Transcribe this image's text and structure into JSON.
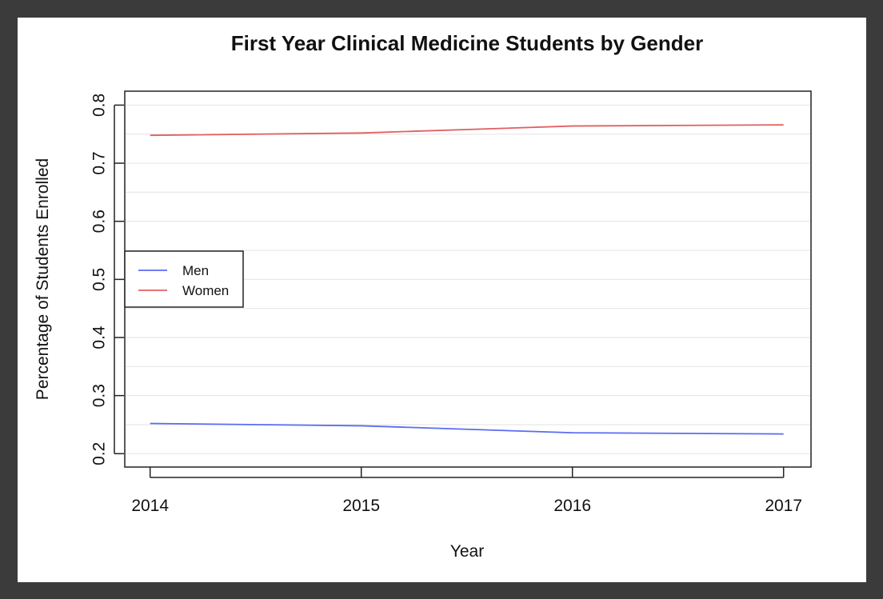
{
  "chart_data": {
    "type": "line",
    "title": "First Year Clinical Medicine Students by Gender",
    "xlabel": "Year",
    "ylabel": "Percentage of Students Enrolled",
    "x": [
      2014,
      2015,
      2016,
      2017
    ],
    "x_tick_labels": [
      "2014",
      "2015",
      "2016",
      "2017"
    ],
    "y_ticks": [
      0.2,
      0.3,
      0.4,
      0.5,
      0.6,
      0.7,
      0.8
    ],
    "y_tick_labels": [
      "0.2",
      "0.3",
      "0.4",
      "0.5",
      "0.6",
      "0.7",
      "0.8"
    ],
    "xlim": [
      2013.88,
      2017.13
    ],
    "ylim": [
      0.177,
      0.824
    ],
    "grid": true,
    "legend_position": "left",
    "series": [
      {
        "name": "Men",
        "color": "#5a6cf2",
        "values": [
          0.252,
          0.248,
          0.236,
          0.234
        ]
      },
      {
        "name": "Women",
        "color": "#e06060",
        "values": [
          0.748,
          0.752,
          0.764,
          0.766
        ]
      }
    ]
  }
}
